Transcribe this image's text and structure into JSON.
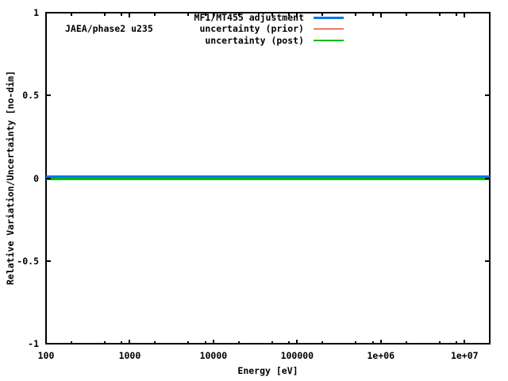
{
  "chart_data": {
    "type": "line",
    "annotation": "JAEA/phase2 u235",
    "xlabel": "Energy [eV]",
    "ylabel": "Relative Variation/Uncertainty [no-dim]",
    "x_scale": "log",
    "xlim": [
      100,
      20000000
    ],
    "ylim": [
      -1,
      1
    ],
    "grid": false,
    "legend_position": "top-right-inside",
    "x_ticks": [
      {
        "value": 100,
        "label": "100"
      },
      {
        "value": 1000,
        "label": "1000"
      },
      {
        "value": 10000,
        "label": "10000"
      },
      {
        "value": 100000,
        "label": "100000"
      },
      {
        "value": 1000000,
        "label": "1e+06"
      },
      {
        "value": 10000000,
        "label": "1e+07"
      }
    ],
    "x_minor_tick_multipliers": [
      2,
      5,
      8
    ],
    "y_ticks": [
      {
        "value": 1,
        "label": "1"
      },
      {
        "value": 0.5,
        "label": "0.5"
      },
      {
        "value": 0,
        "label": "0"
      },
      {
        "value": -0.5,
        "label": "-0.5"
      },
      {
        "value": -1,
        "label": "-1"
      }
    ],
    "series": [
      {
        "name": "MF1/MT455 adjustment",
        "color": "#0b76f0",
        "linewidth": 3,
        "x": [
          100,
          20000000
        ],
        "y": [
          0,
          0
        ]
      },
      {
        "name": "uncertainty (prior)",
        "color": "#dc0000",
        "linewidth": 1,
        "x": [
          100,
          20000000
        ],
        "y": [
          0,
          0
        ]
      },
      {
        "name": "uncertainty (post)",
        "color": "#00bb00",
        "linewidth": 2,
        "x": [
          100,
          20000000
        ],
        "y": [
          0,
          0
        ]
      }
    ],
    "colors": {
      "axis": "#000000",
      "background": "#ffffff",
      "text": "#000000"
    }
  }
}
